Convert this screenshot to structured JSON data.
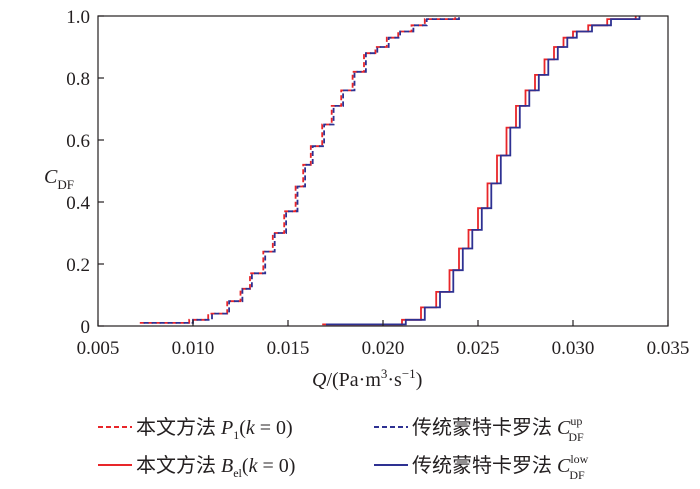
{
  "chart_data": {
    "type": "line",
    "title": "",
    "xlabel": "Q/(Pa·m³·s⁻¹)",
    "ylabel": "C_DF",
    "xlim": [
      0.005,
      0.035
    ],
    "ylim": [
      0,
      1.0
    ],
    "x_ticks": [
      "0.005",
      "0.010",
      "0.015",
      "0.020",
      "0.025",
      "0.030",
      "0.035"
    ],
    "y_ticks": [
      "0",
      "0.2",
      "0.4",
      "0.6",
      "0.8",
      "1.0"
    ],
    "grid": false,
    "legend_position": "bottom",
    "legend": [
      {
        "text": "本文方法 P₁(k = 0)",
        "color": "#e8262a",
        "style": "dashed"
      },
      {
        "text": "传统蒙特卡罗法 C_DF^up",
        "color": "#2e3192",
        "style": "dashed"
      },
      {
        "text": "本文方法 B_el(k = 0)",
        "color": "#e8262a",
        "style": "solid"
      },
      {
        "text": "传统蒙特卡罗法 C_DF^low",
        "color": "#2e3192",
        "style": "solid"
      }
    ],
    "series": [
      {
        "name": "本文方法 P₁(k = 0)",
        "color": "#e8262a",
        "style": "dashed",
        "x": [
          0.0072,
          0.0085,
          0.0098,
          0.0108,
          0.0118,
          0.0125,
          0.013,
          0.0137,
          0.0142,
          0.0148,
          0.0154,
          0.0158,
          0.0162,
          0.0168,
          0.0173,
          0.0178,
          0.0184,
          0.019,
          0.0196,
          0.0202,
          0.0208,
          0.0215,
          0.0222,
          0.0238
        ],
        "y": [
          0.01,
          0.01,
          0.02,
          0.04,
          0.08,
          0.12,
          0.17,
          0.24,
          0.3,
          0.37,
          0.45,
          0.52,
          0.58,
          0.65,
          0.71,
          0.76,
          0.82,
          0.88,
          0.9,
          0.93,
          0.95,
          0.97,
          0.99,
          1.0
        ]
      },
      {
        "name": "传统蒙特卡罗法 C_DF^up",
        "color": "#2e3192",
        "style": "dashed",
        "x": [
          0.0074,
          0.0087,
          0.01,
          0.011,
          0.0119,
          0.0126,
          0.0131,
          0.0138,
          0.0143,
          0.0149,
          0.0155,
          0.0159,
          0.0163,
          0.0169,
          0.0174,
          0.0179,
          0.0185,
          0.0191,
          0.0197,
          0.0203,
          0.0209,
          0.0216,
          0.0223,
          0.024
        ],
        "y": [
          0.01,
          0.01,
          0.02,
          0.04,
          0.08,
          0.12,
          0.17,
          0.24,
          0.3,
          0.37,
          0.45,
          0.52,
          0.58,
          0.65,
          0.71,
          0.76,
          0.82,
          0.88,
          0.9,
          0.93,
          0.95,
          0.97,
          0.99,
          1.0
        ]
      },
      {
        "name": "本文方法 B_el(k = 0)",
        "color": "#e8262a",
        "style": "solid",
        "x": [
          0.0168,
          0.0195,
          0.021,
          0.022,
          0.0228,
          0.0235,
          0.024,
          0.0245,
          0.025,
          0.0255,
          0.026,
          0.0265,
          0.027,
          0.0275,
          0.028,
          0.0285,
          0.029,
          0.0295,
          0.03,
          0.0308,
          0.0318,
          0.0333
        ],
        "y": [
          0.005,
          0.005,
          0.02,
          0.06,
          0.11,
          0.18,
          0.25,
          0.31,
          0.38,
          0.46,
          0.55,
          0.64,
          0.71,
          0.76,
          0.81,
          0.86,
          0.9,
          0.93,
          0.95,
          0.97,
          0.99,
          1.0
        ]
      },
      {
        "name": "传统蒙特卡罗法 C_DF^low",
        "color": "#2e3192",
        "style": "solid",
        "x": [
          0.017,
          0.0197,
          0.0212,
          0.0222,
          0.023,
          0.0237,
          0.0242,
          0.0247,
          0.0252,
          0.0257,
          0.0262,
          0.0267,
          0.0272,
          0.0277,
          0.0282,
          0.0287,
          0.0292,
          0.0297,
          0.0302,
          0.031,
          0.032,
          0.0335
        ],
        "y": [
          0.005,
          0.005,
          0.02,
          0.06,
          0.11,
          0.18,
          0.25,
          0.31,
          0.38,
          0.46,
          0.55,
          0.64,
          0.71,
          0.76,
          0.81,
          0.86,
          0.9,
          0.93,
          0.95,
          0.97,
          0.99,
          1.0
        ]
      }
    ]
  }
}
